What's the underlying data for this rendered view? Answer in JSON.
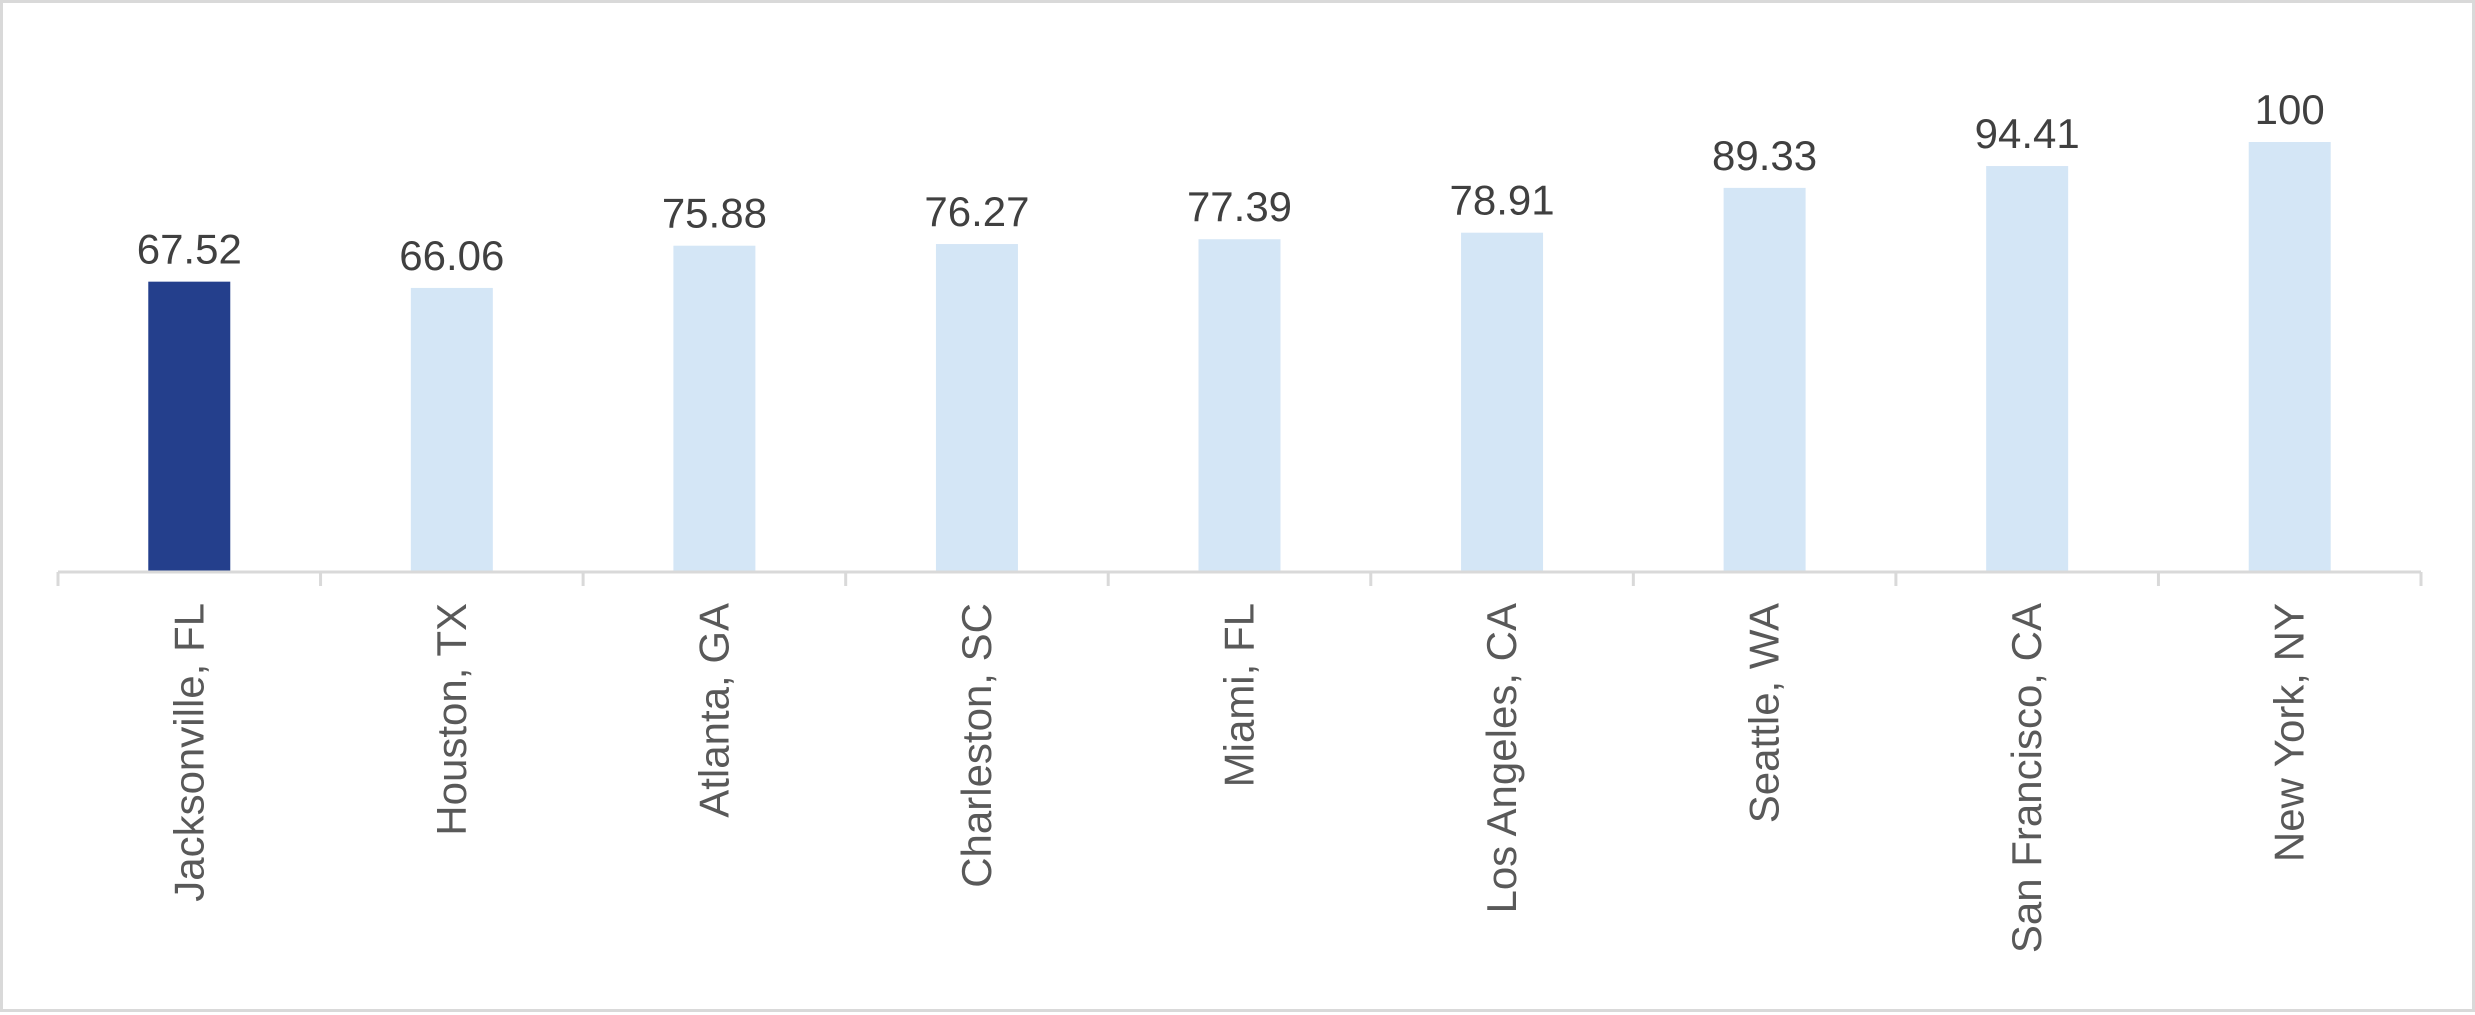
{
  "chart_data": {
    "type": "bar",
    "title": "",
    "xlabel": "",
    "ylabel": "",
    "categories": [
      "Jacksonville, FL",
      "Houston, TX",
      "Atlanta, GA",
      "Charleston, SC",
      "Miami, FL",
      "Los Angeles, CA",
      "Seattle, WA",
      "San Francisco, CA",
      "New York, NY"
    ],
    "values": [
      67.52,
      66.06,
      75.88,
      76.27,
      77.39,
      78.91,
      89.33,
      94.41,
      100
    ],
    "value_labels": [
      "67.52",
      "66.06",
      "75.88",
      "76.27",
      "77.39",
      "78.91",
      "89.33",
      "94.41",
      "100"
    ],
    "ylim": [
      0,
      100
    ],
    "grid": false,
    "legend": "none",
    "colors": {
      "highlight": "#243f8c",
      "default": "#d4e6f6",
      "axis": "#d9d9d9"
    },
    "highlight_index": 0
  }
}
